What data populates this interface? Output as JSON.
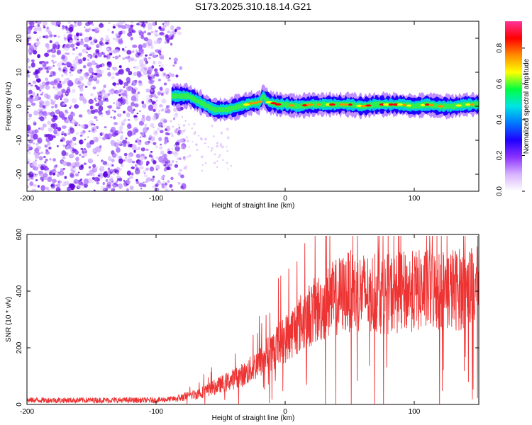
{
  "figure": {
    "title": "S173.2025.310.18.14.G21"
  },
  "chart_data": [
    {
      "type": "heatmap",
      "xlabel": "Height of straight line (km)",
      "ylabel": "Frequency (Hz)",
      "xlim": [
        -200,
        150
      ],
      "ylim": [
        -25,
        25
      ],
      "xticks": [
        -200,
        -100,
        0,
        100
      ],
      "xtick_labels": [
        "-200",
        "-100",
        "0",
        "100"
      ],
      "yticks": [
        -20,
        -10,
        0,
        10,
        20
      ],
      "ytick_labels": [
        "-20",
        "-10",
        "0",
        "10",
        "20"
      ],
      "noise_region_x": [
        -200,
        -88
      ],
      "signal_track": {
        "name": "dominant frequency",
        "x": [
          -88,
          -80,
          -75,
          -70,
          -65,
          -60,
          -55,
          -50,
          -45,
          -40,
          -35,
          -30,
          -25,
          -20,
          -17,
          -15,
          -12,
          -10,
          -5,
          0,
          10,
          20,
          30,
          40,
          50,
          60,
          70,
          80,
          90,
          100,
          110,
          120,
          130,
          140,
          150
        ],
        "y": [
          3,
          3,
          3,
          2,
          1,
          0,
          -1,
          -1,
          -1,
          -0.5,
          0,
          0.5,
          1,
          1,
          3,
          2,
          1,
          1,
          0.5,
          0.5,
          0,
          0.5,
          0.5,
          0.5,
          0.5,
          0,
          0.5,
          0.5,
          0.5,
          0,
          0.5,
          0,
          0,
          0.5,
          0.5
        ]
      },
      "colorbar": {
        "label": "Normalized spectral amplitude",
        "range": [
          0,
          0.95
        ],
        "ticks": [
          0,
          0.2,
          0.4,
          0.6,
          0.8
        ],
        "tick_labels": [
          "0.0",
          "0.2",
          "0.4",
          "0.6",
          "0.8"
        ],
        "colors": [
          "#ffffff",
          "#d9b3ff",
          "#8c33ff",
          "#2000ff",
          "#0077ff",
          "#00e5e5",
          "#00ff40",
          "#ffff00",
          "#ff8c00",
          "#ff0000",
          "#ff3399"
        ]
      }
    },
    {
      "type": "line",
      "xlabel": "Height of straight line (km)",
      "ylabel": "SNR (10 * v/v)",
      "xlim": [
        -200,
        150
      ],
      "ylim": [
        0,
        600
      ],
      "xticks": [
        -200,
        -100,
        0,
        100
      ],
      "xtick_labels": [
        "-200",
        "-100",
        "0",
        "100"
      ],
      "yticks": [
        0,
        200,
        400,
        600
      ],
      "ytick_labels": [
        "0",
        "200",
        "400",
        "600"
      ],
      "color": "#ee3333",
      "series": [
        {
          "name": "SNR",
          "trend_x": [
            -200,
            -100,
            -85,
            -70,
            -60,
            -50,
            -40,
            -30,
            -20,
            -10,
            0,
            10,
            20,
            30,
            40,
            50,
            60,
            80,
            100,
            120,
            150
          ],
          "trend_y": [
            15,
            15,
            20,
            35,
            50,
            70,
            90,
            110,
            150,
            190,
            230,
            280,
            320,
            350,
            380,
            400,
            395,
            390,
            400,
            405,
            410
          ]
        }
      ]
    }
  ]
}
